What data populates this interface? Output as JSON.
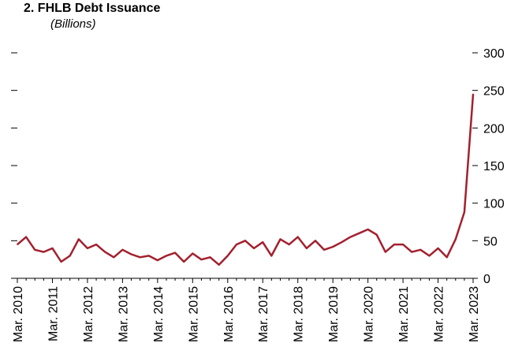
{
  "chart_data": {
    "type": "line",
    "title": "2. FHLB Debt Issuance",
    "subtitle": "(Billions)",
    "xlabel": "",
    "ylabel": "",
    "ylim": [
      0,
      300
    ],
    "y_ticks": [
      0,
      50,
      100,
      150,
      200,
      250,
      300
    ],
    "y_axis_side": "right",
    "grid": false,
    "x_tick_labels": [
      "Mar. 2010",
      "Mar. 2011",
      "Mar. 2012",
      "Mar. 2013",
      "Mar. 2014",
      "Mar. 2015",
      "Mar. 2016",
      "Mar. 2017",
      "Mar. 2018",
      "Mar. 2019",
      "Mar. 2020",
      "Mar. 2021",
      "Mar. 2022",
      "Mar. 2023"
    ],
    "series_color": "#a3202e",
    "series": [
      {
        "x": [
          "2010-03",
          "2010-06",
          "2010-09",
          "2010-12",
          "2011-03",
          "2011-06",
          "2011-09",
          "2011-12",
          "2012-03",
          "2012-06",
          "2012-09",
          "2012-12",
          "2013-03",
          "2013-06",
          "2013-09",
          "2013-12",
          "2014-03",
          "2014-06",
          "2014-09",
          "2014-12",
          "2015-03",
          "2015-06",
          "2015-09",
          "2015-12",
          "2016-03",
          "2016-06",
          "2016-09",
          "2016-12",
          "2017-03",
          "2017-06",
          "2017-09",
          "2017-12",
          "2018-03",
          "2018-06",
          "2018-09",
          "2018-12",
          "2019-03",
          "2019-06",
          "2019-09",
          "2019-12",
          "2020-03",
          "2020-06",
          "2020-09",
          "2020-12",
          "2021-03",
          "2021-06",
          "2021-09",
          "2021-12",
          "2022-03",
          "2022-06",
          "2022-09",
          "2022-12",
          "2023-03"
        ],
        "values": [
          45,
          55,
          38,
          35,
          40,
          22,
          30,
          52,
          40,
          45,
          35,
          28,
          38,
          32,
          28,
          30,
          24,
          30,
          34,
          22,
          33,
          25,
          28,
          18,
          30,
          45,
          50,
          40,
          48,
          30,
          52,
          45,
          55,
          40,
          50,
          38,
          42,
          48,
          55,
          60,
          65,
          58,
          35,
          45,
          45,
          35,
          38,
          30,
          40,
          28,
          52,
          88,
          245
        ]
      }
    ]
  }
}
